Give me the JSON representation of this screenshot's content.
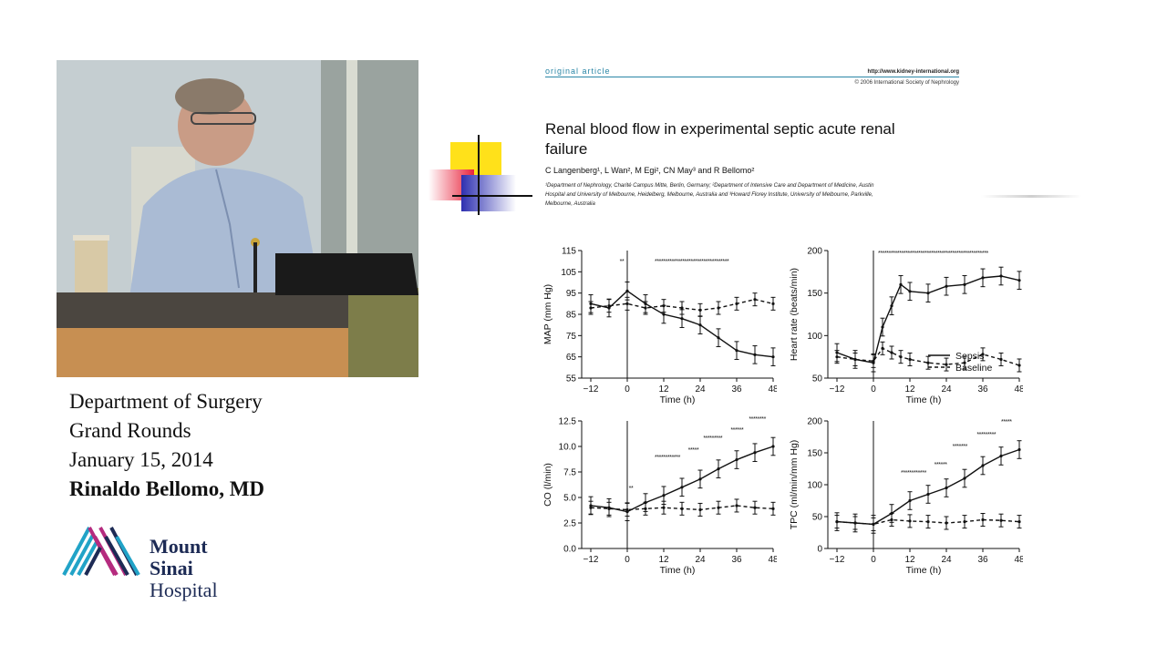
{
  "caption": {
    "line1": "Department of Surgery",
    "line2": "Grand Rounds",
    "line3": "January 15, 2014",
    "line4": "Rinaldo Bellomo, MD"
  },
  "logo": {
    "line1": "Mount",
    "line2": "Sinai",
    "line3": "Hospital"
  },
  "article": {
    "tag": "original article",
    "url": "http://www.kidney-international.org",
    "copyright": "© 2006 International Society of Nephrology",
    "title_line1": "Renal blood flow in experimental septic acute renal",
    "title_line2": "failure",
    "authors": "C Langenberg¹, L Wan², M Egi², CN May³ and R Bellomo²",
    "affil_line1": "¹Department of Nephrology, Charité Campus Mitte, Berlin, Germany; ²Department of Intensive Care and Department of Medicine, Austin",
    "affil_line2": "Hospital and University of Melbourne, Heidelberg, Melbourne, Australia and ³Howard Florey Institute, University of Melbourne, Parkville,",
    "affil_line3": "Melbourne, Australia"
  },
  "colors": {
    "logo_navy": "#1d2b55",
    "logo_cyan": "#21a3c7",
    "logo_magenta": "#b52b7f",
    "deco_yellow": "#ffe11a",
    "deco_red": "#e8233c",
    "deco_blue": "#2d2fb0"
  },
  "chart_data": [
    {
      "type": "line",
      "xlabel": "Time (h)",
      "ylabel": "MAP (mm Hg)",
      "xticks": [
        -12,
        0,
        12,
        24,
        36,
        48
      ],
      "yticks": [
        55,
        65,
        75,
        85,
        95,
        105,
        115
      ],
      "xlim": [
        -15,
        48
      ],
      "ylim": [
        55,
        115
      ],
      "x": [
        -12,
        -6,
        0,
        6,
        12,
        18,
        24,
        30,
        36,
        42,
        48
      ],
      "series": [
        {
          "name": "Sepsis",
          "values": [
            90,
            88,
            96,
            90,
            85,
            83,
            80,
            74,
            68,
            66,
            65
          ]
        },
        {
          "name": "Baseline",
          "values": [
            88,
            89,
            90,
            88,
            89,
            88,
            87,
            88,
            90,
            92,
            90
          ]
        }
      ],
      "annotation_text": {
        "sig_a": "**",
        "sig_b": "***********************************"
      }
    },
    {
      "type": "line",
      "xlabel": "Time (h)",
      "ylabel": "Heart rate (beats/min)",
      "xticks": [
        -12,
        0,
        12,
        24,
        36,
        48
      ],
      "yticks": [
        50,
        100,
        150,
        200
      ],
      "xlim": [
        -15,
        48
      ],
      "ylim": [
        50,
        200
      ],
      "x": [
        -12,
        -6,
        0,
        3,
        6,
        9,
        12,
        18,
        24,
        30,
        36,
        42,
        48
      ],
      "legend": [
        "Sepsis",
        "Baseline"
      ],
      "legend_position": "bottom-right",
      "series": [
        {
          "name": "Sepsis",
          "values": [
            80,
            72,
            68,
            110,
            135,
            160,
            152,
            150,
            158,
            160,
            168,
            170,
            165
          ]
        },
        {
          "name": "Baseline",
          "values": [
            75,
            72,
            70,
            85,
            80,
            75,
            72,
            68,
            66,
            68,
            78,
            72,
            65
          ]
        }
      ],
      "annotation_text": {
        "sig_b": "****************************************************"
      }
    },
    {
      "type": "line",
      "xlabel": "Time (h)",
      "ylabel": "CO (l/min)",
      "xticks": [
        -12,
        0,
        12,
        24,
        36,
        48
      ],
      "yticks": [
        0.0,
        2.5,
        5.0,
        7.5,
        10.0,
        12.5
      ],
      "ytick_labels": [
        "0.0",
        "2.5",
        "5.0",
        "7.5",
        "10.0",
        "12.5"
      ],
      "xlim": [
        -15,
        48
      ],
      "ylim": [
        0,
        12.5
      ],
      "x": [
        -12,
        -6,
        0,
        6,
        12,
        18,
        24,
        30,
        36,
        42,
        48
      ],
      "series": [
        {
          "name": "Sepsis",
          "values": [
            4.2,
            4.0,
            3.6,
            4.5,
            5.2,
            6.0,
            6.8,
            7.8,
            8.7,
            9.4,
            10.0
          ]
        },
        {
          "name": "Baseline",
          "values": [
            4.0,
            3.9,
            3.8,
            3.9,
            4.0,
            3.9,
            3.8,
            4.0,
            4.2,
            4.0,
            3.9
          ]
        }
      ],
      "annotation_text": {
        "sig_a": "**",
        "sig_b": "************",
        "sig_c": "*****",
        "sig_d": "*********",
        "sig_e": "******",
        "sig_f": "********"
      }
    },
    {
      "type": "line",
      "xlabel": "Time (h)",
      "ylabel": "TPC (ml/min/mm Hg)",
      "xticks": [
        -12,
        0,
        12,
        24,
        36,
        48
      ],
      "yticks": [
        0,
        50,
        100,
        150,
        200
      ],
      "xlim": [
        -15,
        48
      ],
      "ylim": [
        0,
        200
      ],
      "x": [
        -12,
        -6,
        0,
        6,
        12,
        18,
        24,
        30,
        36,
        42,
        48
      ],
      "series": [
        {
          "name": "Sepsis",
          "values": [
            42,
            40,
            38,
            55,
            75,
            85,
            95,
            110,
            130,
            145,
            155
          ]
        },
        {
          "name": "Baseline",
          "values": [
            42,
            40,
            38,
            45,
            43,
            42,
            40,
            42,
            45,
            44,
            42
          ]
        }
      ],
      "annotation_text": {
        "sig_b": "************",
        "sig_c": "******",
        "sig_d": "*******",
        "sig_e": "*********",
        "sig_f": "*****"
      }
    }
  ]
}
